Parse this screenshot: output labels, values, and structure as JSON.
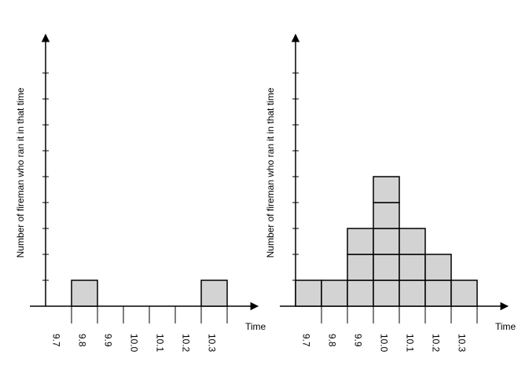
{
  "chart_data": [
    {
      "type": "bar",
      "style": "dot-plot",
      "xlabel": "Time",
      "ylabel": "Number of fireman who ran it in that time",
      "categories": [
        "9.7",
        "9.8",
        "9.9",
        "10.0",
        "10.1",
        "10.2",
        "10.3"
      ],
      "values": [
        0,
        1,
        0,
        0,
        0,
        0,
        1
      ],
      "ylim": [
        0,
        9
      ],
      "grid": false,
      "box_color": "#d3d3d3"
    },
    {
      "type": "bar",
      "style": "dot-plot",
      "xlabel": "Time",
      "ylabel": "Number of fireman who ran it in that time",
      "categories": [
        "9.7",
        "9.8",
        "9.9",
        "10.0",
        "10.1",
        "10.2",
        "10.3"
      ],
      "values": [
        1,
        1,
        3,
        5,
        3,
        2,
        1
      ],
      "ylim": [
        0,
        9
      ],
      "grid": false,
      "box_color": "#d3d3d3"
    }
  ]
}
